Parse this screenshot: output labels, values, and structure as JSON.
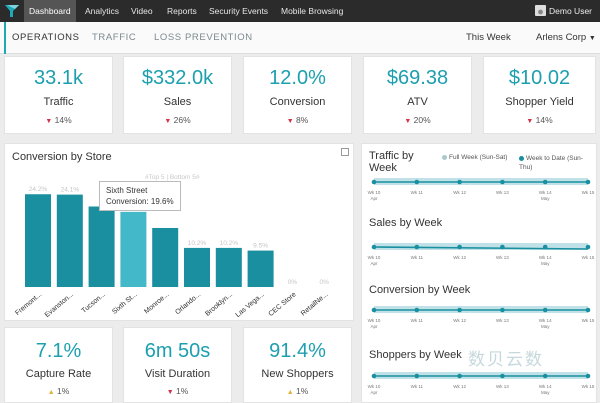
{
  "topnav": {
    "items": [
      "Dashboard",
      "Analytics",
      "Video",
      "Reports",
      "Security Events",
      "Mobile Browsing"
    ],
    "user": "Demo User"
  },
  "subnav": {
    "tabs": [
      "OPERATIONS",
      "TRAFFIC",
      "LOSS PREVENTION"
    ],
    "period": "This Week",
    "org": "Arlens Corp"
  },
  "kpis_top": [
    {
      "value": "33.1k",
      "label": "Traffic",
      "change": "14%",
      "dir": "down"
    },
    {
      "value": "$332.0k",
      "label": "Sales",
      "change": "26%",
      "dir": "down"
    },
    {
      "value": "12.0%",
      "label": "Conversion",
      "change": "8%",
      "dir": "down"
    },
    {
      "value": "$69.38",
      "label": "ATV",
      "change": "20%",
      "dir": "down"
    },
    {
      "value": "$10.02",
      "label": "Shopper Yield",
      "change": "14%",
      "dir": "down"
    }
  ],
  "kpis_bottom": [
    {
      "value": "7.1%",
      "label": "Capture Rate",
      "change": "1%",
      "dir": "up"
    },
    {
      "value": "6m 50s",
      "label": "Visit Duration",
      "change": "1%",
      "dir": "down"
    },
    {
      "value": "91.4%",
      "label": "New Shoppers",
      "change": "1%",
      "dir": "up"
    }
  ],
  "conversion_chart": {
    "title": "Conversion by Store",
    "faint_label": "#Top 5 | Bottom 5#",
    "tooltip_store": "Sixth Street",
    "tooltip_value": "Conversion: 19.6%"
  },
  "trend_panels": {
    "traffic_title": "Traffic by Week",
    "legend_full": "Full Week (Sun-Sat)",
    "legend_wtd": "Week to Date (Sun-Thu)",
    "sales_title": "Sales by Week",
    "conversion_title": "Conversion by Week",
    "shoppers_title": "Shoppers by Week",
    "week_labels": [
      "Wk 10",
      "Wk 11",
      "Wk 12",
      "Wk 13",
      "Wk 14",
      "Wk 15"
    ],
    "month_labels": [
      "Apr",
      "",
      "",
      "",
      "May",
      ""
    ]
  },
  "watermark": "数贝云数",
  "chart_data": {
    "type": "bar",
    "title": "Conversion by Store",
    "categories": [
      "Fremont...",
      "Evanston...",
      "Tucson...",
      "Sixth St...",
      "Monroe...",
      "Orlando...",
      "Brooklyn...",
      "Las Vega...",
      "CEC Store",
      "RetailNe..."
    ],
    "values": [
      24.2,
      24.1,
      21.0,
      19.6,
      15.4,
      10.2,
      10.2,
      9.5,
      0,
      0
    ],
    "data_labels": [
      "24.2%",
      "24.1%",
      "",
      "",
      "",
      "10.2%",
      "10.2%",
      "9.5%",
      "0%",
      "0%"
    ],
    "ylim": [
      0,
      30
    ],
    "highlight": "Sixth St...",
    "colors": {
      "bar": "#1a8fa0",
      "highlight": "#43b8c8"
    }
  }
}
